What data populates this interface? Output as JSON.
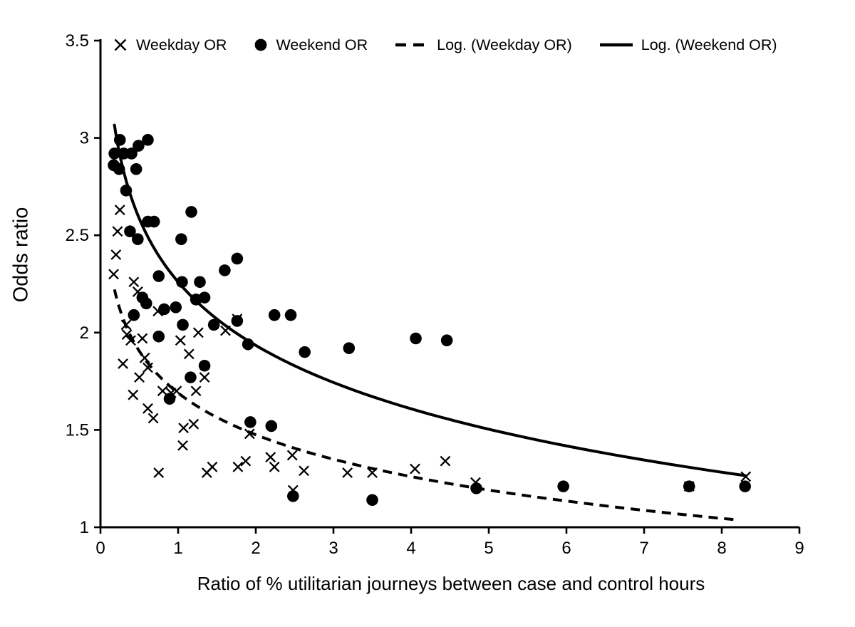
{
  "figure": {
    "y_axis_title": "Odds ratio",
    "x_axis_title": "Ratio of % utilitarian journeys between case and control hours"
  },
  "legend": {
    "items": [
      {
        "label": "Weekday OR",
        "marker": "x-cross-marker"
      },
      {
        "label": "Weekend OR",
        "marker": "filled-circle-marker"
      },
      {
        "label": "Log. (Weekday OR)",
        "marker": "dashed-line-sample"
      },
      {
        "label": "Log. (Weekend OR)",
        "marker": "solid-line-sample"
      }
    ]
  },
  "chart_data": {
    "type": "scatter",
    "title": "",
    "xlabel": "Ratio of % utilitarian journeys between case and control hours",
    "ylabel": "Odds ratio",
    "xlim": [
      0,
      9
    ],
    "ylim": [
      1,
      3.5
    ],
    "x_ticks": [
      "0",
      "1",
      "2",
      "3",
      "4",
      "5",
      "6",
      "7",
      "8",
      "9"
    ],
    "y_ticks": [
      "1",
      "1.5",
      "2",
      "2.5",
      "3",
      "3.5"
    ],
    "grid": false,
    "legend_position": "top",
    "series": [
      {
        "name": "Weekday OR",
        "marker": "x",
        "points": [
          [
            0.25,
            2.63
          ],
          [
            0.22,
            2.52
          ],
          [
            0.2,
            2.4
          ],
          [
            0.17,
            2.3
          ],
          [
            0.43,
            2.26
          ],
          [
            0.48,
            2.21
          ],
          [
            0.74,
            2.11
          ],
          [
            0.33,
            2.04
          ],
          [
            0.34,
            1.99
          ],
          [
            0.39,
            1.96
          ],
          [
            0.54,
            1.97
          ],
          [
            1.03,
            1.96
          ],
          [
            1.26,
            2.0
          ],
          [
            1.61,
            2.01
          ],
          [
            1.76,
            2.07
          ],
          [
            0.29,
            1.84
          ],
          [
            0.57,
            1.87
          ],
          [
            0.61,
            1.82
          ],
          [
            1.14,
            1.89
          ],
          [
            0.5,
            1.77
          ],
          [
            1.34,
            1.77
          ],
          [
            1.23,
            1.7
          ],
          [
            0.8,
            1.7
          ],
          [
            0.91,
            1.69
          ],
          [
            0.98,
            1.7
          ],
          [
            0.42,
            1.68
          ],
          [
            0.61,
            1.61
          ],
          [
            0.68,
            1.56
          ],
          [
            1.07,
            1.51
          ],
          [
            1.2,
            1.53
          ],
          [
            1.06,
            1.42
          ],
          [
            0.75,
            1.28
          ],
          [
            1.37,
            1.28
          ],
          [
            1.44,
            1.31
          ],
          [
            1.77,
            1.31
          ],
          [
            1.87,
            1.34
          ],
          [
            1.92,
            1.48
          ],
          [
            2.19,
            1.36
          ],
          [
            2.24,
            1.31
          ],
          [
            2.47,
            1.37
          ],
          [
            2.62,
            1.29
          ],
          [
            3.18,
            1.28
          ],
          [
            3.5,
            1.28
          ],
          [
            4.05,
            1.3
          ],
          [
            4.44,
            1.34
          ],
          [
            2.48,
            1.19
          ],
          [
            4.83,
            1.23
          ],
          [
            7.58,
            1.21
          ],
          [
            8.31,
            1.26
          ]
        ]
      },
      {
        "name": "Weekend OR",
        "marker": "circle",
        "points": [
          [
            0.25,
            2.99
          ],
          [
            0.61,
            2.99
          ],
          [
            0.49,
            2.96
          ],
          [
            0.18,
            2.92
          ],
          [
            0.3,
            2.92
          ],
          [
            0.4,
            2.92
          ],
          [
            0.17,
            2.86
          ],
          [
            0.24,
            2.84
          ],
          [
            0.46,
            2.84
          ],
          [
            0.33,
            2.73
          ],
          [
            0.61,
            2.57
          ],
          [
            0.69,
            2.57
          ],
          [
            0.38,
            2.52
          ],
          [
            0.48,
            2.48
          ],
          [
            1.17,
            2.62
          ],
          [
            1.04,
            2.48
          ],
          [
            0.75,
            2.29
          ],
          [
            1.6,
            2.32
          ],
          [
            1.76,
            2.38
          ],
          [
            1.05,
            2.26
          ],
          [
            1.28,
            2.26
          ],
          [
            0.54,
            2.18
          ],
          [
            0.59,
            2.15
          ],
          [
            0.82,
            2.12
          ],
          [
            0.97,
            2.13
          ],
          [
            1.23,
            2.17
          ],
          [
            1.34,
            2.18
          ],
          [
            0.43,
            2.09
          ],
          [
            1.46,
            2.04
          ],
          [
            1.76,
            2.06
          ],
          [
            1.06,
            2.04
          ],
          [
            0.75,
            1.98
          ],
          [
            1.34,
            1.83
          ],
          [
            1.16,
            1.77
          ],
          [
            0.89,
            1.66
          ],
          [
            1.9,
            1.94
          ],
          [
            1.93,
            1.54
          ],
          [
            2.2,
            1.52
          ],
          [
            2.24,
            2.09
          ],
          [
            2.45,
            2.09
          ],
          [
            2.63,
            1.9
          ],
          [
            3.2,
            1.92
          ],
          [
            2.48,
            1.16
          ],
          [
            3.5,
            1.14
          ],
          [
            4.06,
            1.97
          ],
          [
            4.46,
            1.96
          ],
          [
            4.84,
            1.2
          ],
          [
            5.96,
            1.21
          ],
          [
            7.58,
            1.21
          ],
          [
            8.3,
            1.21
          ]
        ]
      },
      {
        "name": "Log. (Weekday OR)",
        "curve": "logarithmic_fit",
        "style": "dashed",
        "equation": {
          "a": 1.69,
          "b": -0.31,
          "form": "y = a + b*ln(x)"
        },
        "x_range": [
          0.18,
          8.2
        ]
      },
      {
        "name": "Log. (Weekend OR)",
        "curve": "logarithmic_fit",
        "style": "solid",
        "equation": {
          "a": 2.26,
          "b": -0.47,
          "form": "y = a + b*ln(x)"
        },
        "x_range": [
          0.18,
          8.3
        ]
      }
    ],
    "colors": {
      "foreground": "#000000",
      "background": "#ffffff"
    }
  }
}
